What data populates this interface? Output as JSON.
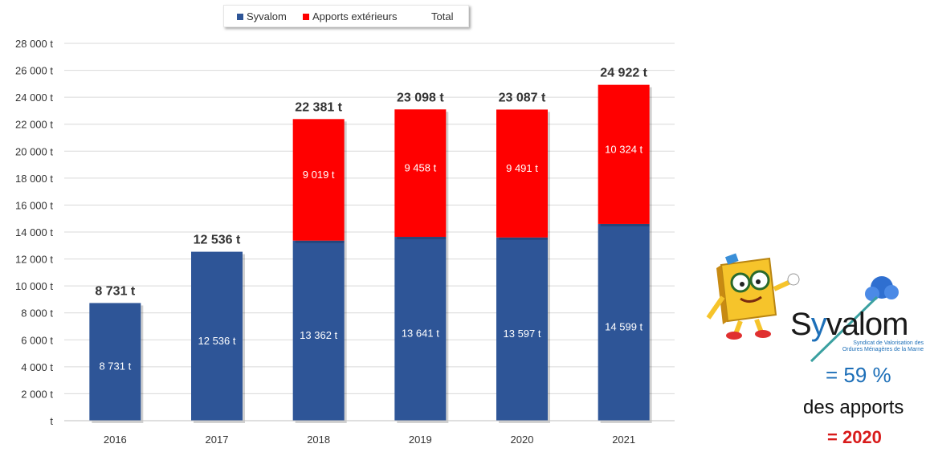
{
  "chart_data": {
    "type": "bar",
    "stacked": true,
    "categories": [
      "2016",
      "2017",
      "2018",
      "2019",
      "2020",
      "2021"
    ],
    "series": [
      {
        "name": "Syvalom",
        "color": "#2e5597",
        "values": [
          8731,
          12536,
          13362,
          13641,
          13597,
          14599
        ],
        "labels": [
          "8 731 t",
          "12 536 t",
          "13 362 t",
          "13 641 t",
          "13 597 t",
          "14 599 t"
        ]
      },
      {
        "name": "Apports extérieurs",
        "color": "#ff0000",
        "values": [
          0,
          0,
          9019,
          9458,
          9491,
          10324
        ],
        "labels": [
          "",
          "",
          "9 019 t",
          "9 458 t",
          "9 491 t",
          "10 324 t"
        ]
      }
    ],
    "totals": [
      8731,
      12536,
      22381,
      23098,
      23087,
      24922
    ],
    "total_labels": [
      "8 731 t",
      "12 536 t",
      "22 381 t",
      "23 098 t",
      "23 087 t",
      "24 922 t"
    ],
    "legend": [
      "Syvalom",
      "Apports extérieurs",
      "Total"
    ],
    "ylim": [
      0,
      28000
    ],
    "ytick_labels": [
      "t",
      "2 000 t",
      "4 000 t",
      "6 000 t",
      "8 000 t",
      "10 000 t",
      "12 000 t",
      "14 000 t",
      "16 000 t",
      "18 000 t",
      "20 000 t",
      "22 000 t",
      "24 000 t",
      "26 000 t",
      "28 000 t"
    ],
    "grid": true,
    "legend_position": "top"
  },
  "side_panel": {
    "brand_pre": "S",
    "brand_post": "valom",
    "subtitle_1": "Syndicat de Valorisation des",
    "subtitle_2": "Ordures Ménagères de la Marne",
    "share": "= 59 %",
    "caption": "des apports",
    "year": "= 2020"
  },
  "colors": {
    "syvalom": "#2e5597",
    "apports": "#ff0000",
    "accent_blue": "#1d6fb8",
    "accent_red": "#d81b1b"
  }
}
